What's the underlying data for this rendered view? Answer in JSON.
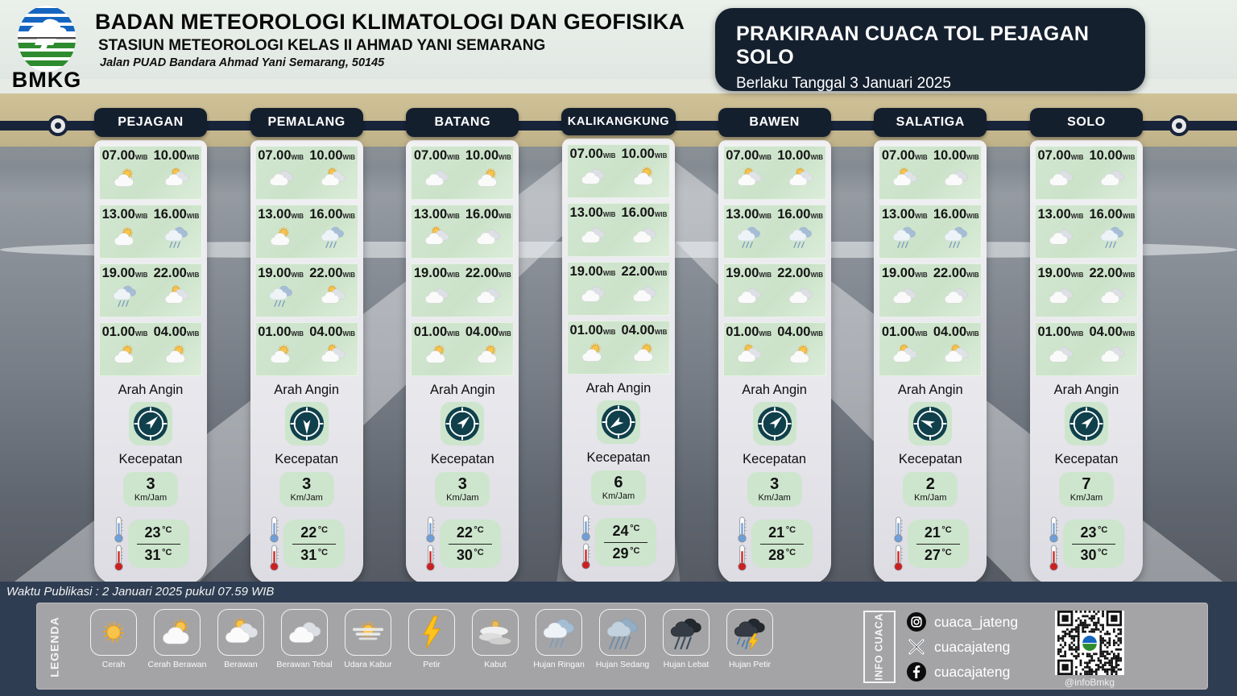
{
  "header": {
    "agency": "BADAN METEOROLOGI KLIMATOLOGI DAN GEOFISIKA",
    "station": "STASIUN METEOROLOGI KELAS II AHMAD YANI SEMARANG",
    "address": "Jalan PUAD Bandara Ahmad Yani Semarang, 50145",
    "logo_text": "BMKG",
    "title": "PRAKIRAAN CUACA TOL PEJAGAN SOLO",
    "subtitle": "Berlaku Tanggal  3 Januari 2025"
  },
  "labels": {
    "wind_direction": "Arah Angin",
    "speed": "Kecepatan",
    "speed_unit": "Km/Jam",
    "wib": "WIB",
    "deg": "°C"
  },
  "columns": [
    {
      "name": "PEJAGAN",
      "wind_deg": 45,
      "speed": "3",
      "temp_min": "23",
      "temp_max": "31",
      "slots": [
        {
          "time": "07.00",
          "icon": "cerah-berawan"
        },
        {
          "time": "10.00",
          "icon": "berawan"
        },
        {
          "time": "13.00",
          "icon": "cerah-berawan"
        },
        {
          "time": "16.00",
          "icon": "hujan-ringan"
        },
        {
          "time": "19.00",
          "icon": "hujan-ringan"
        },
        {
          "time": "22.00",
          "icon": "berawan"
        },
        {
          "time": "01.00",
          "icon": "cerah-berawan"
        },
        {
          "time": "04.00",
          "icon": "cerah-berawan"
        }
      ]
    },
    {
      "name": "PEMALANG",
      "wind_deg": 180,
      "speed": "3",
      "temp_min": "22",
      "temp_max": "31",
      "slots": [
        {
          "time": "07.00",
          "icon": "berawan-tebal"
        },
        {
          "time": "10.00",
          "icon": "berawan"
        },
        {
          "time": "13.00",
          "icon": "cerah-berawan"
        },
        {
          "time": "16.00",
          "icon": "hujan-ringan"
        },
        {
          "time": "19.00",
          "icon": "hujan-ringan"
        },
        {
          "time": "22.00",
          "icon": "berawan"
        },
        {
          "time": "01.00",
          "icon": "cerah-berawan"
        },
        {
          "time": "04.00",
          "icon": "berawan"
        }
      ]
    },
    {
      "name": "BATANG",
      "wind_deg": 45,
      "speed": "3",
      "temp_min": "22",
      "temp_max": "30",
      "slots": [
        {
          "time": "07.00",
          "icon": "berawan-tebal"
        },
        {
          "time": "10.00",
          "icon": "cerah-berawan"
        },
        {
          "time": "13.00",
          "icon": "berawan"
        },
        {
          "time": "16.00",
          "icon": "berawan-tebal"
        },
        {
          "time": "19.00",
          "icon": "berawan-tebal"
        },
        {
          "time": "22.00",
          "icon": "berawan-tebal"
        },
        {
          "time": "01.00",
          "icon": "cerah-berawan"
        },
        {
          "time": "04.00",
          "icon": "cerah-berawan"
        }
      ]
    },
    {
      "name": "KALIKANGKUNG",
      "wind_deg": 235,
      "speed": "6",
      "temp_min": "24",
      "temp_max": "29",
      "slots": [
        {
          "time": "07.00",
          "icon": "berawan-tebal"
        },
        {
          "time": "10.00",
          "icon": "cerah-berawan"
        },
        {
          "time": "13.00",
          "icon": "berawan-tebal"
        },
        {
          "time": "16.00",
          "icon": "berawan-tebal"
        },
        {
          "time": "19.00",
          "icon": "berawan-tebal"
        },
        {
          "time": "22.00",
          "icon": "berawan-tebal"
        },
        {
          "time": "01.00",
          "icon": "cerah-berawan"
        },
        {
          "time": "04.00",
          "icon": "cerah-berawan"
        }
      ]
    },
    {
      "name": "BAWEN",
      "wind_deg": 45,
      "speed": "3",
      "temp_min": "21",
      "temp_max": "28",
      "slots": [
        {
          "time": "07.00",
          "icon": "berawan"
        },
        {
          "time": "10.00",
          "icon": "berawan"
        },
        {
          "time": "13.00",
          "icon": "hujan-ringan"
        },
        {
          "time": "16.00",
          "icon": "hujan-ringan"
        },
        {
          "time": "19.00",
          "icon": "berawan-tebal"
        },
        {
          "time": "22.00",
          "icon": "berawan-tebal"
        },
        {
          "time": "01.00",
          "icon": "berawan"
        },
        {
          "time": "04.00",
          "icon": "cerah-berawan"
        }
      ]
    },
    {
      "name": "SALATIGA",
      "wind_deg": 290,
      "speed": "2",
      "temp_min": "21",
      "temp_max": "27",
      "slots": [
        {
          "time": "07.00",
          "icon": "berawan"
        },
        {
          "time": "10.00",
          "icon": "berawan-tebal"
        },
        {
          "time": "13.00",
          "icon": "hujan-ringan"
        },
        {
          "time": "16.00",
          "icon": "hujan-ringan"
        },
        {
          "time": "19.00",
          "icon": "berawan-tebal"
        },
        {
          "time": "22.00",
          "icon": "berawan-tebal"
        },
        {
          "time": "01.00",
          "icon": "berawan"
        },
        {
          "time": "04.00",
          "icon": "berawan"
        }
      ]
    },
    {
      "name": "SOLO",
      "wind_deg": 45,
      "speed": "7",
      "temp_min": "23",
      "temp_max": "30",
      "slots": [
        {
          "time": "07.00",
          "icon": "berawan-tebal"
        },
        {
          "time": "10.00",
          "icon": "berawan-tebal"
        },
        {
          "time": "13.00",
          "icon": "berawan-tebal"
        },
        {
          "time": "16.00",
          "icon": "hujan-ringan"
        },
        {
          "time": "19.00",
          "icon": "berawan-tebal"
        },
        {
          "time": "22.00",
          "icon": "berawan-tebal"
        },
        {
          "time": "01.00",
          "icon": "berawan-tebal"
        },
        {
          "time": "04.00",
          "icon": "berawan-tebal"
        }
      ]
    }
  ],
  "footer": {
    "publication": "Waktu Publikasi : 2 Januari 2025 pukul 07.59 WIB",
    "legend_title": "LEGENDA",
    "legend": [
      {
        "label": "Cerah",
        "icon": "cerah"
      },
      {
        "label": "Cerah Berawan",
        "icon": "cerah-berawan"
      },
      {
        "label": "Berawan",
        "icon": "berawan"
      },
      {
        "label": "Berawan Tebal",
        "icon": "berawan-tebal"
      },
      {
        "label": "Udara Kabur",
        "icon": "udara-kabur"
      },
      {
        "label": "Petir",
        "icon": "petir"
      },
      {
        "label": "Kabut",
        "icon": "kabut"
      },
      {
        "label": "Hujan Ringan",
        "icon": "hujan-ringan"
      },
      {
        "label": "Hujan Sedang",
        "icon": "hujan-sedang"
      },
      {
        "label": "Hujan Lebat",
        "icon": "hujan-lebat"
      },
      {
        "label": "Hujan Petir",
        "icon": "hujan-petir"
      }
    ],
    "info_cuaca": "INFO CUACA",
    "social": [
      {
        "network": "instagram",
        "handle": "cuaca_jateng"
      },
      {
        "network": "x",
        "handle": "cuacajateng"
      },
      {
        "network": "facebook",
        "handle": "cuacajateng"
      }
    ],
    "qr_caption": "@infoBmkg"
  },
  "colors": {
    "navy": "#15202f",
    "cell_green": "#cde5cd",
    "legend_gray": "#a4a4a6",
    "footer_navy": "#2e3d52"
  }
}
